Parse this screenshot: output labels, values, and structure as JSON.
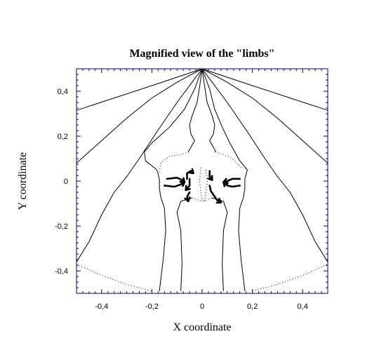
{
  "chart_data": {
    "type": "line",
    "title": "Magnified view of the \"limbs\"",
    "xlabel": "X coordinate",
    "ylabel": "Y coordinate",
    "xlim": [
      -0.5,
      0.5
    ],
    "ylim": [
      -0.5,
      0.5
    ],
    "xticks": [
      -0.4,
      -0.2,
      0,
      0.2,
      0.4
    ],
    "xtick_labels": [
      "-0,4",
      "-0,2",
      "0",
      "0,2",
      "0,4"
    ],
    "yticks": [
      -0.4,
      -0.2,
      0,
      0.2,
      0.4
    ],
    "ytick_labels": [
      "-0,4",
      "-0,2",
      "0",
      "0,2",
      "0,4"
    ],
    "grid": false,
    "series": [
      {
        "style": "solid",
        "points": [
          [
            -0.5,
            0.315
          ],
          [
            -0.35,
            0.37
          ],
          [
            -0.2,
            0.425
          ],
          [
            -0.08,
            0.47
          ],
          [
            0,
            0.5
          ]
        ]
      },
      {
        "style": "solid",
        "points": [
          [
            -0.5,
            0.08
          ],
          [
            -0.4,
            0.18
          ],
          [
            -0.3,
            0.28
          ],
          [
            -0.2,
            0.37
          ],
          [
            -0.1,
            0.44
          ],
          [
            0,
            0.5
          ]
        ]
      },
      {
        "style": "solid",
        "points": [
          [
            -0.5,
            -0.36
          ],
          [
            -0.45,
            -0.27
          ],
          [
            -0.4,
            -0.15
          ],
          [
            -0.35,
            -0.05
          ],
          [
            -0.3,
            0.02
          ],
          [
            -0.25,
            0.1
          ],
          [
            -0.18,
            0.22
          ],
          [
            -0.1,
            0.35
          ],
          [
            -0.04,
            0.44
          ],
          [
            0,
            0.5
          ]
        ]
      },
      {
        "style": "solid",
        "points": [
          [
            -0.17,
            -0.49
          ],
          [
            -0.155,
            -0.35
          ],
          [
            -0.145,
            -0.22
          ],
          [
            -0.15,
            -0.12
          ],
          [
            -0.165,
            -0.07
          ],
          [
            -0.17,
            -0.03
          ],
          [
            -0.17,
            0.01
          ],
          [
            -0.18,
            0.05
          ],
          [
            -0.225,
            0.09
          ],
          [
            -0.23,
            0.13
          ],
          [
            -0.2,
            0.17
          ],
          [
            -0.13,
            0.24
          ],
          [
            -0.07,
            0.32
          ],
          [
            -0.03,
            0.41
          ],
          [
            0,
            0.5
          ]
        ]
      },
      {
        "style": "solid",
        "points": [
          [
            -0.085,
            -0.49
          ],
          [
            -0.08,
            -0.37
          ],
          [
            -0.085,
            -0.22
          ],
          [
            -0.1,
            -0.14
          ],
          [
            -0.085,
            -0.09
          ],
          [
            -0.04,
            -0.075
          ]
        ]
      },
      {
        "style": "solid",
        "points": [
          [
            -0.055,
            0.13
          ],
          [
            -0.04,
            0.16
          ],
          [
            -0.03,
            0.18
          ],
          [
            -0.045,
            0.21
          ],
          [
            -0.05,
            0.25
          ],
          [
            -0.04,
            0.29
          ],
          [
            -0.02,
            0.35
          ],
          [
            -0.01,
            0.42
          ],
          [
            0,
            0.5
          ]
        ]
      },
      {
        "style": "solid",
        "points": [
          [
            0.5,
            0.315
          ],
          [
            0.35,
            0.37
          ],
          [
            0.2,
            0.425
          ],
          [
            0.08,
            0.47
          ],
          [
            0,
            0.5
          ]
        ]
      },
      {
        "style": "solid",
        "points": [
          [
            0.5,
            0.08
          ],
          [
            0.4,
            0.18
          ],
          [
            0.3,
            0.28
          ],
          [
            0.2,
            0.37
          ],
          [
            0.1,
            0.44
          ],
          [
            0,
            0.5
          ]
        ]
      },
      {
        "style": "solid",
        "points": [
          [
            0.5,
            -0.36
          ],
          [
            0.45,
            -0.27
          ],
          [
            0.4,
            -0.15
          ],
          [
            0.35,
            -0.05
          ],
          [
            0.3,
            0.02
          ],
          [
            0.25,
            0.1
          ],
          [
            0.18,
            0.22
          ],
          [
            0.1,
            0.35
          ],
          [
            0.04,
            0.44
          ],
          [
            0,
            0.5
          ]
        ]
      },
      {
        "style": "solid",
        "points": [
          [
            0.17,
            -0.49
          ],
          [
            0.155,
            -0.35
          ],
          [
            0.145,
            -0.22
          ],
          [
            0.15,
            -0.12
          ],
          [
            0.165,
            -0.07
          ],
          [
            0.17,
            -0.03
          ],
          [
            0.17,
            0.01
          ],
          [
            0.18,
            0.05
          ],
          [
            0.15,
            0.09
          ],
          [
            0.13,
            0.13
          ],
          [
            0.11,
            0.17
          ],
          [
            0.08,
            0.24
          ],
          [
            0.05,
            0.32
          ],
          [
            0.03,
            0.41
          ],
          [
            0,
            0.5
          ]
        ]
      },
      {
        "style": "solid",
        "points": [
          [
            0.085,
            -0.49
          ],
          [
            0.08,
            -0.37
          ],
          [
            0.085,
            -0.22
          ],
          [
            0.1,
            -0.14
          ],
          [
            0.085,
            -0.09
          ],
          [
            0.04,
            -0.075
          ]
        ]
      },
      {
        "style": "solid",
        "points": [
          [
            0.055,
            0.13
          ],
          [
            0.04,
            0.16
          ],
          [
            0.03,
            0.18
          ],
          [
            0.045,
            0.21
          ],
          [
            0.05,
            0.25
          ],
          [
            0.04,
            0.29
          ],
          [
            0.02,
            0.35
          ],
          [
            0.01,
            0.42
          ],
          [
            0,
            0.5
          ]
        ]
      },
      {
        "style": "dotted",
        "points": [
          [
            -0.5,
            -0.37
          ],
          [
            -0.4,
            -0.42
          ],
          [
            -0.3,
            -0.46
          ],
          [
            -0.2,
            -0.49
          ]
        ]
      },
      {
        "style": "dotted",
        "points": [
          [
            0.2,
            -0.49
          ],
          [
            0.3,
            -0.46
          ],
          [
            0.4,
            -0.42
          ],
          [
            0.5,
            -0.37
          ]
        ]
      },
      {
        "style": "dotted",
        "points": [
          [
            -0.17,
            0.04
          ],
          [
            -0.165,
            0.08
          ],
          [
            -0.13,
            0.11
          ],
          [
            -0.08,
            0.12
          ],
          [
            -0.05,
            0.13
          ]
        ]
      },
      {
        "style": "dotted",
        "points": [
          [
            0.05,
            0.13
          ],
          [
            0.08,
            0.12
          ],
          [
            0.12,
            0.1
          ],
          [
            0.155,
            0.06
          ]
        ]
      },
      {
        "style": "dotted",
        "points": [
          [
            -0.005,
            0.06
          ],
          [
            -0.01,
            0.0
          ],
          [
            -0.005,
            -0.05
          ],
          [
            0.0,
            -0.09
          ]
        ]
      },
      {
        "style": "dotted",
        "points": [
          [
            0.015,
            0.05
          ],
          [
            0.02,
            0.0
          ],
          [
            0.015,
            -0.05
          ],
          [
            0.01,
            -0.09
          ]
        ]
      },
      {
        "style": "dotted",
        "points": [
          [
            -0.04,
            -0.075
          ],
          [
            -0.015,
            -0.085
          ],
          [
            0.0,
            -0.09
          ],
          [
            0.015,
            -0.085
          ],
          [
            0.04,
            -0.075
          ]
        ]
      },
      {
        "style": "arrow",
        "points": [
          [
            -0.14,
            0.01
          ],
          [
            -0.1,
            0.015
          ],
          [
            -0.08,
            0.005
          ],
          [
            -0.07,
            -0.005
          ]
        ]
      },
      {
        "style": "arrow",
        "points": [
          [
            -0.15,
            -0.02
          ],
          [
            -0.11,
            -0.025
          ],
          [
            -0.085,
            -0.015
          ],
          [
            -0.07,
            -0.005
          ]
        ]
      },
      {
        "style": "arrow",
        "points": [
          [
            -0.06,
            0.01
          ],
          [
            -0.06,
            0.035
          ],
          [
            -0.045,
            0.045
          ],
          [
            -0.035,
            0.035
          ]
        ]
      },
      {
        "style": "arrow",
        "points": [
          [
            -0.05,
            0.01
          ],
          [
            -0.05,
            -0.02
          ],
          [
            -0.065,
            -0.04
          ]
        ]
      },
      {
        "style": "arrow",
        "points": [
          [
            -0.05,
            -0.05
          ],
          [
            -0.06,
            -0.07
          ],
          [
            -0.055,
            -0.09
          ]
        ]
      },
      {
        "style": "arrow",
        "points": [
          [
            0.03,
            0.045
          ],
          [
            0.03,
            0.02
          ],
          [
            0.04,
            0.005
          ]
        ]
      },
      {
        "style": "arrow",
        "points": [
          [
            0.03,
            -0.02
          ],
          [
            0.035,
            -0.045
          ],
          [
            0.06,
            -0.085
          ],
          [
            0.075,
            -0.095
          ]
        ]
      },
      {
        "style": "arrow",
        "points": [
          [
            0.15,
            0.01
          ],
          [
            0.12,
            0.01
          ],
          [
            0.1,
            0.0
          ],
          [
            0.085,
            -0.005
          ]
        ]
      },
      {
        "style": "arrow",
        "points": [
          [
            0.15,
            -0.02
          ],
          [
            0.12,
            -0.025
          ],
          [
            0.1,
            -0.02
          ],
          [
            0.085,
            -0.005
          ]
        ]
      }
    ]
  }
}
